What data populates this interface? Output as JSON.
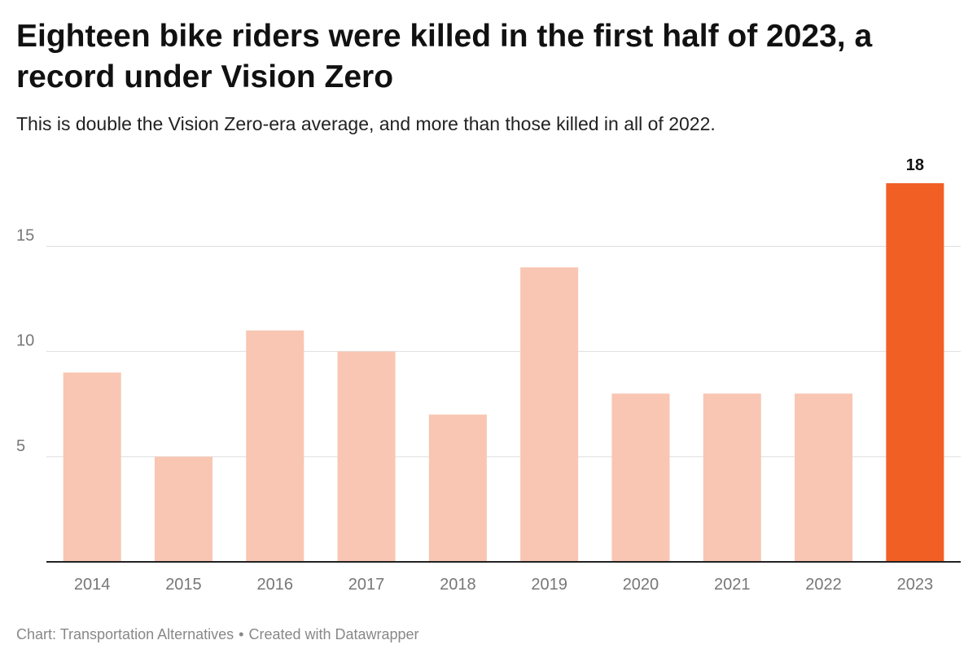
{
  "header": {
    "title": "Eighteen bike riders were killed in the first half of 2023, a record under Vision Zero",
    "subtitle": "This is double the Vision Zero-era average, and more than those killed in all of 2022."
  },
  "footer": {
    "source": "Chart: Transportation Alternatives",
    "separator": "•",
    "credit": "Created with Datawrapper"
  },
  "colors": {
    "bar_default": "#f8c6b2",
    "bar_highlight": "#f25f24",
    "gridline": "#dddddd",
    "axis": "#222222",
    "tick_label": "#777777",
    "value_label": "#111111"
  },
  "chart_data": {
    "type": "bar",
    "categories": [
      "2014",
      "2015",
      "2016",
      "2017",
      "2018",
      "2019",
      "2020",
      "2021",
      "2022",
      "2023"
    ],
    "values": [
      9,
      5,
      11,
      10,
      7,
      14,
      8,
      8,
      8,
      18
    ],
    "highlight_index": 9,
    "value_labels": [
      {
        "index": 9,
        "text": "18"
      }
    ],
    "yticks": [
      {
        "value": 5,
        "label": "5"
      },
      {
        "value": 10,
        "label": "10"
      },
      {
        "value": 15,
        "label": "15"
      }
    ],
    "ylim": [
      0,
      18
    ],
    "grid": true,
    "title": "Eighteen bike riders were killed in the first half of 2023, a record under Vision Zero",
    "subtitle": "This is double the Vision Zero-era average, and more than those killed in all of 2022.",
    "xlabel": "",
    "ylabel": ""
  }
}
